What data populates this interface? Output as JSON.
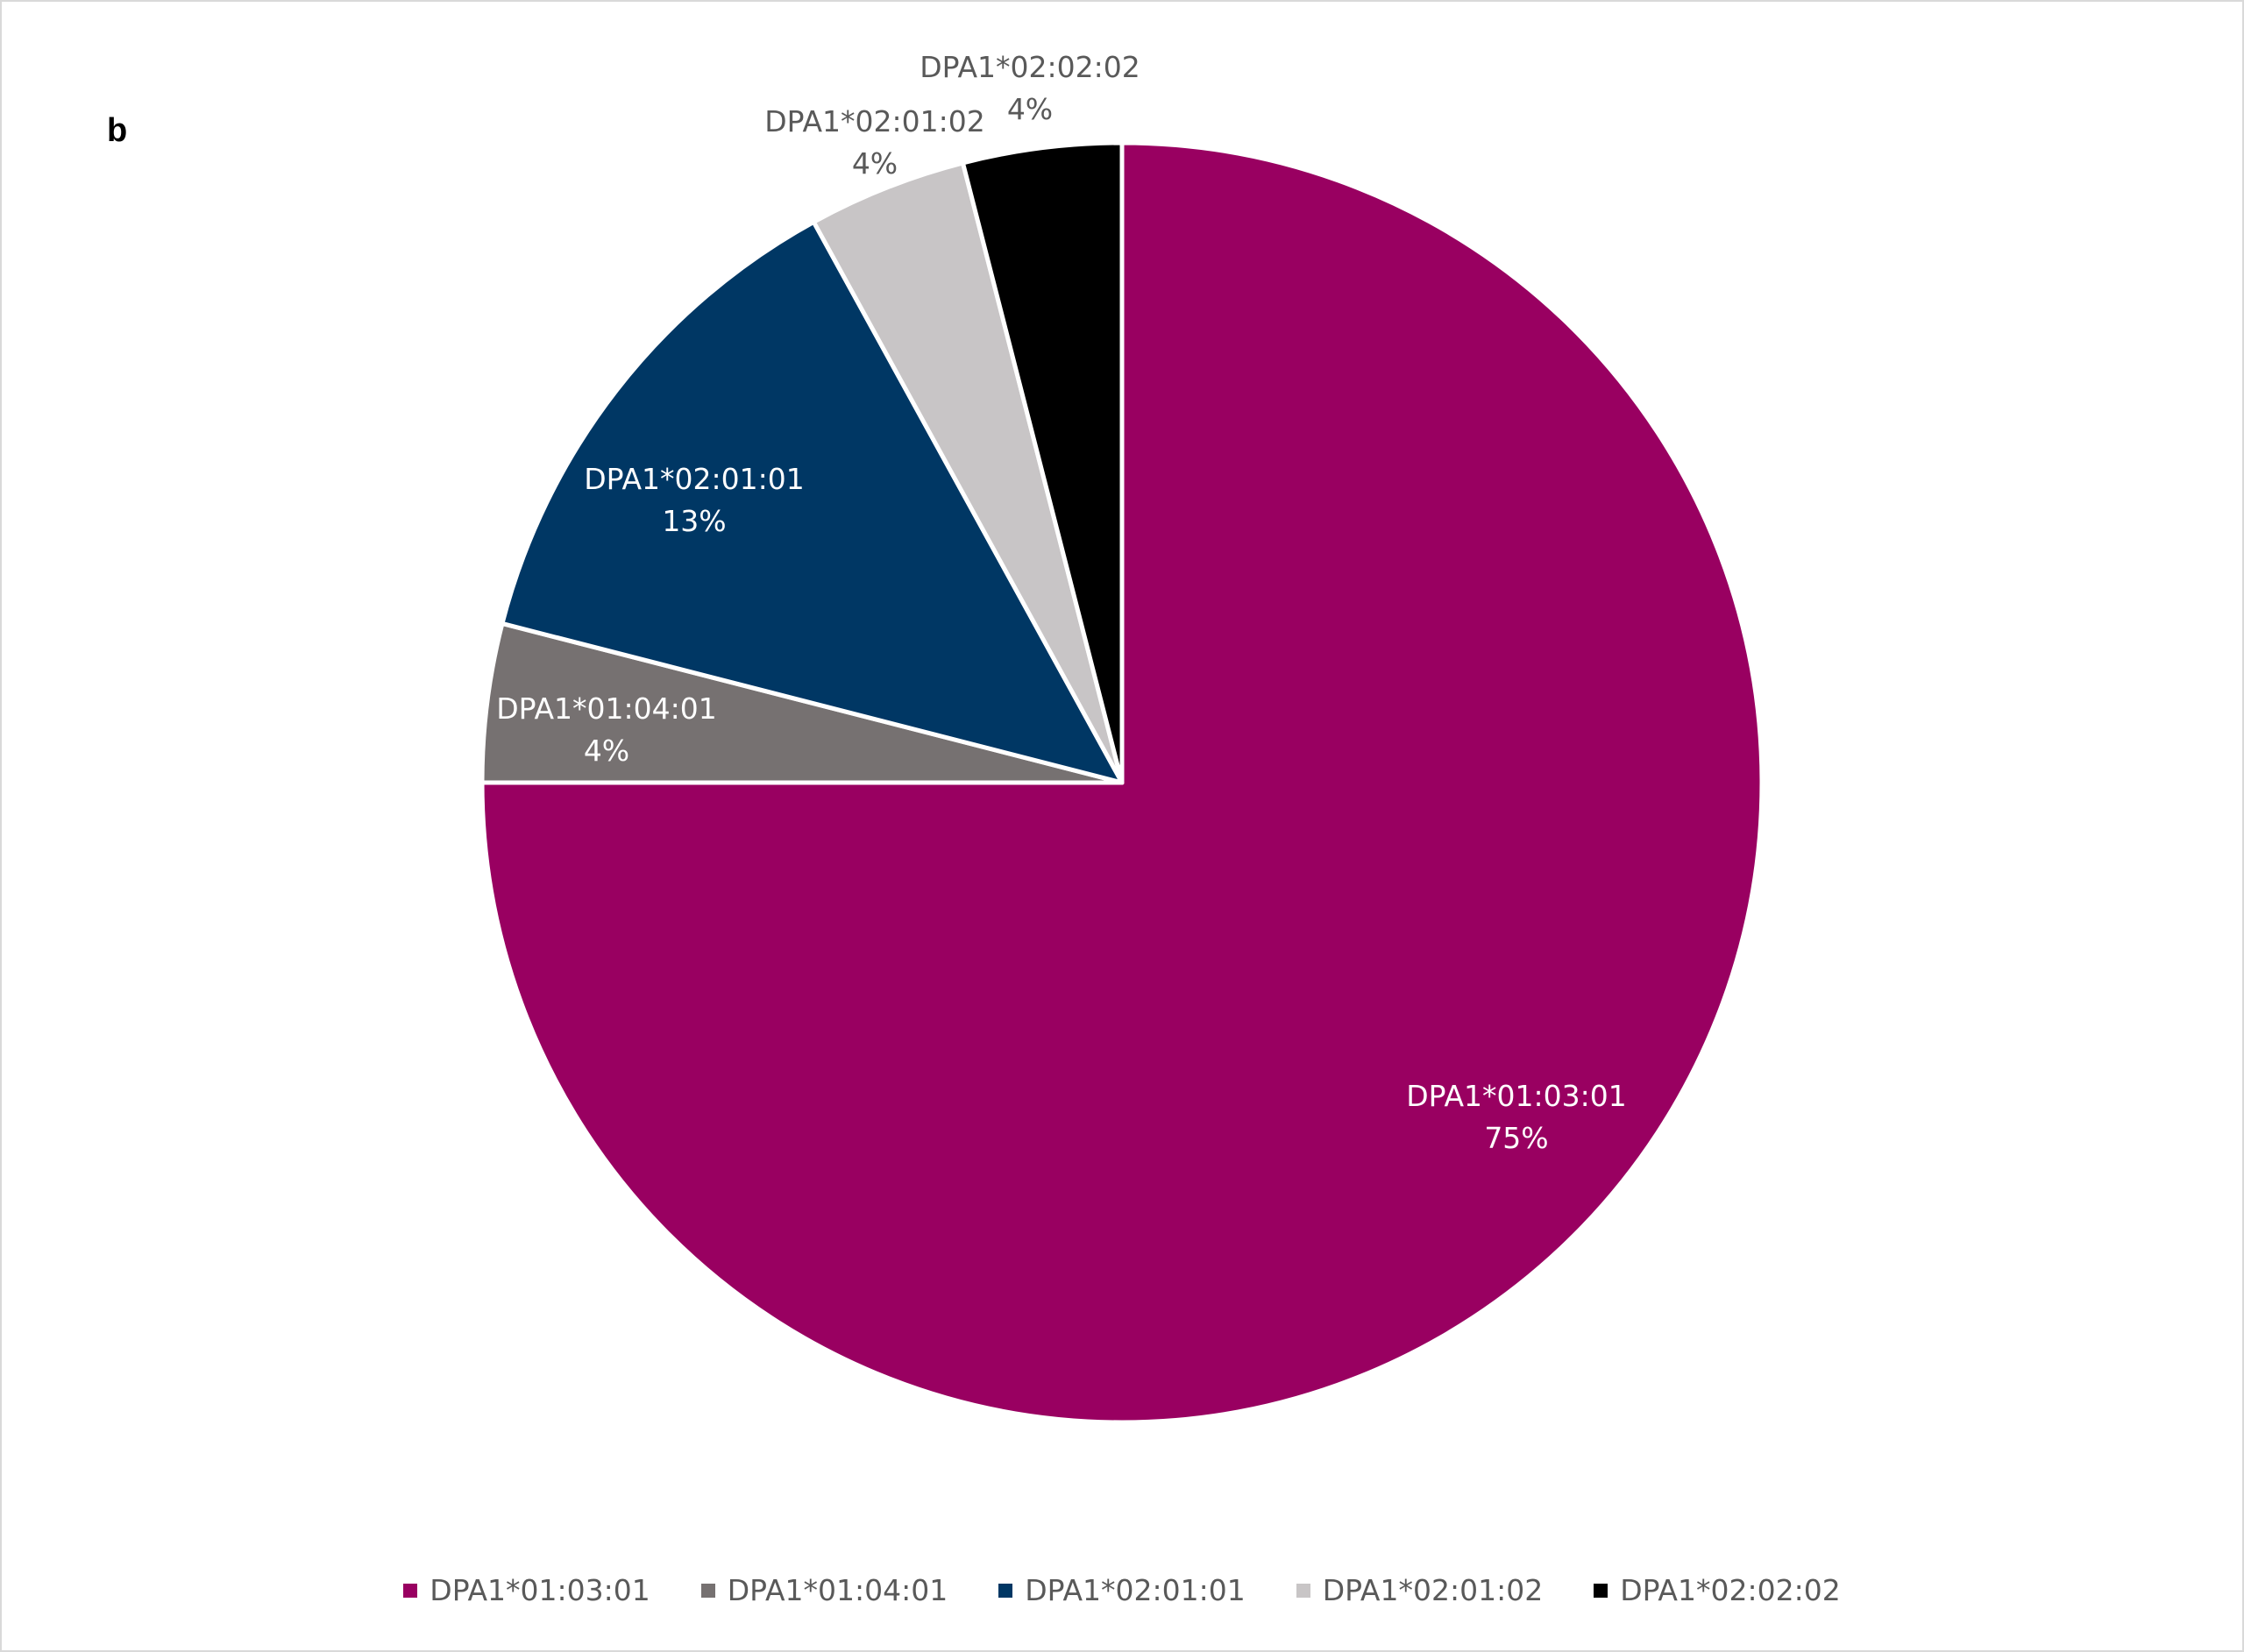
{
  "panel_label": "b",
  "chart_data": {
    "type": "pie",
    "title": "",
    "slices": [
      {
        "label": "DPA1*01:03:01",
        "value": 75,
        "display": "75%",
        "color": "#990061",
        "label_color": "#ffffff"
      },
      {
        "label": "DPA1*01:04:01",
        "value": 4,
        "display": "4%",
        "color": "#767171",
        "label_color": "#ffffff"
      },
      {
        "label": "DPA1*02:01:01",
        "value": 13,
        "display": "13%",
        "color": "#003764",
        "label_color": "#ffffff"
      },
      {
        "label": "DPA1*02:01:02",
        "value": 4,
        "display": "4%",
        "color": "#c8c5c6",
        "label_color": "#595959"
      },
      {
        "label": "DPA1*02:02:02",
        "value": 4,
        "display": "4%",
        "color": "#000000",
        "label_color": "#595959"
      }
    ],
    "start_angle": "12 o'clock",
    "direction": "clockwise",
    "legend_position": "bottom"
  }
}
